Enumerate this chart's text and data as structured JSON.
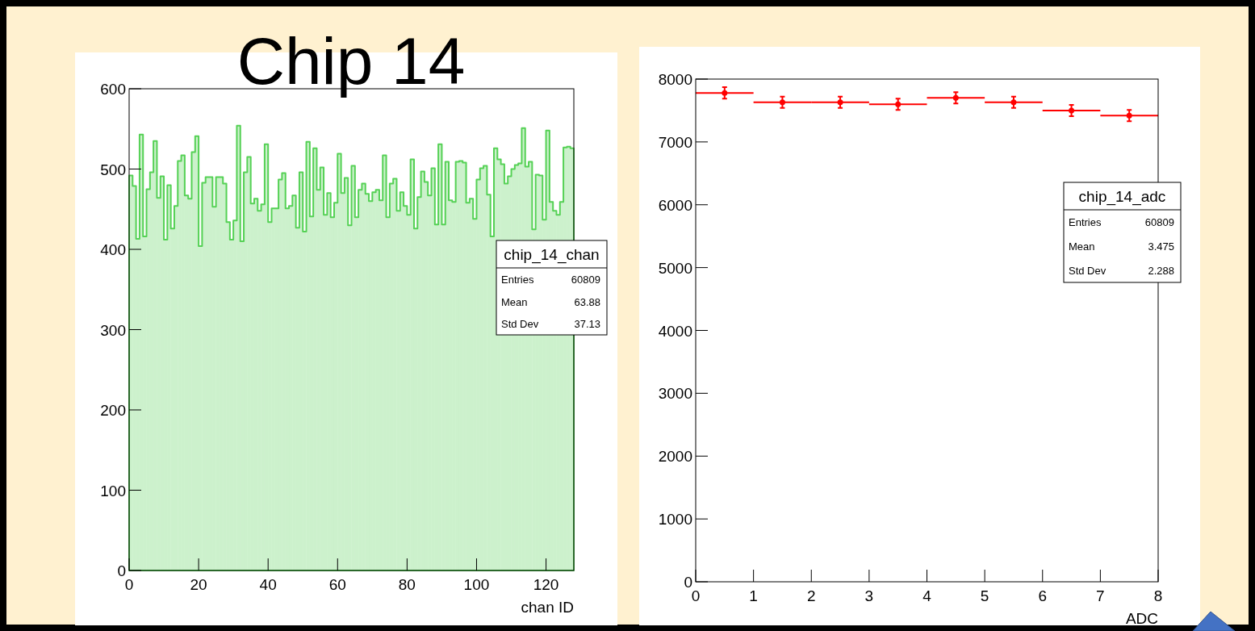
{
  "chart_data": [
    {
      "type": "histogram",
      "title": "Chip 14",
      "xlabel": "chan ID",
      "color": "#55d155",
      "xlim": [
        0,
        128
      ],
      "xticks": [
        0,
        20,
        40,
        60,
        80,
        100,
        120
      ],
      "ylim": [
        0,
        600
      ],
      "yticks": [
        0,
        100,
        200,
        300,
        400,
        500,
        600
      ],
      "grid": false,
      "bins": [
        0,
        1,
        2,
        3,
        4,
        5,
        6,
        7,
        8,
        9,
        10,
        11,
        12,
        13,
        14,
        15,
        16,
        17,
        18,
        19,
        20,
        21,
        22,
        23,
        24,
        25,
        26,
        27,
        28,
        29,
        30,
        31,
        32,
        33,
        34,
        35,
        36,
        37,
        38,
        39,
        40,
        41,
        42,
        43,
        44,
        45,
        46,
        47,
        48,
        49,
        50,
        51,
        52,
        53,
        54,
        55,
        56,
        57,
        58,
        59,
        60,
        61,
        62,
        63,
        64,
        65,
        66,
        67,
        68,
        69,
        70,
        71,
        72,
        73,
        74,
        75,
        76,
        77,
        78,
        79,
        80,
        81,
        82,
        83,
        84,
        85,
        86,
        87,
        88,
        89,
        90,
        91,
        92,
        93,
        94,
        95,
        96,
        97,
        98,
        99,
        100,
        101,
        102,
        103,
        104,
        105,
        106,
        107,
        108,
        109,
        110,
        111,
        112,
        113,
        114,
        115,
        116,
        117,
        118,
        119,
        120,
        121,
        122,
        123,
        124,
        125,
        126,
        127,
        128
      ],
      "values": [
        492,
        479,
        413,
        543,
        416,
        475,
        496,
        535,
        464,
        491,
        412,
        480,
        426,
        454,
        510,
        517,
        467,
        463,
        521,
        541,
        404,
        483,
        490,
        490,
        453,
        490,
        490,
        482,
        434,
        412,
        436,
        554,
        410,
        496,
        515,
        457,
        463,
        448,
        456,
        531,
        434,
        451,
        451,
        487,
        495,
        451,
        454,
        467,
        427,
        496,
        422,
        534,
        441,
        526,
        474,
        502,
        443,
        470,
        440,
        458,
        519,
        470,
        489,
        430,
        504,
        440,
        474,
        482,
        469,
        460,
        471,
        474,
        461,
        517,
        440,
        482,
        488,
        448,
        471,
        454,
        443,
        512,
        426,
        465,
        497,
        484,
        467,
        501,
        431,
        531,
        431,
        509,
        461,
        459,
        509,
        510,
        508,
        458,
        463,
        438,
        487,
        501,
        504,
        468,
        416,
        526,
        512,
        506,
        482,
        491,
        500,
        505,
        507,
        551,
        503,
        509,
        425,
        493,
        492,
        437,
        548,
        459,
        448,
        443,
        459,
        527,
        528,
        526
      ],
      "annotations": [
        "chip_14_chan",
        "Entries",
        "60809",
        "Mean",
        "63.88",
        "Std Dev",
        "37.13"
      ]
    },
    {
      "type": "scatter",
      "xlabel": "ADC",
      "color": "#ff0000",
      "xlim": [
        0,
        8
      ],
      "xticks": [
        0,
        1,
        2,
        3,
        4,
        5,
        6,
        7,
        8
      ],
      "ylim": [
        0,
        8000
      ],
      "yticks": [
        0,
        1000,
        2000,
        3000,
        4000,
        5000,
        6000,
        7000,
        8000
      ],
      "grid": false,
      "marker": "circle",
      "x": [
        0.5,
        1.5,
        2.5,
        3.5,
        4.5,
        5.5,
        6.5,
        7.5
      ],
      "values": [
        7780,
        7630,
        7630,
        7600,
        7700,
        7630,
        7500,
        7420
      ],
      "errors": [
        90,
        90,
        90,
        90,
        90,
        90,
        90,
        90
      ],
      "xerrors": [
        0.5,
        0.5,
        0.5,
        0.5,
        0.5,
        0.5,
        0.5,
        0.5
      ],
      "annotations": [
        "chip_14_adc",
        "Entries",
        "60809",
        "Mean",
        "3.475",
        "Std Dev",
        "2.288"
      ]
    }
  ]
}
